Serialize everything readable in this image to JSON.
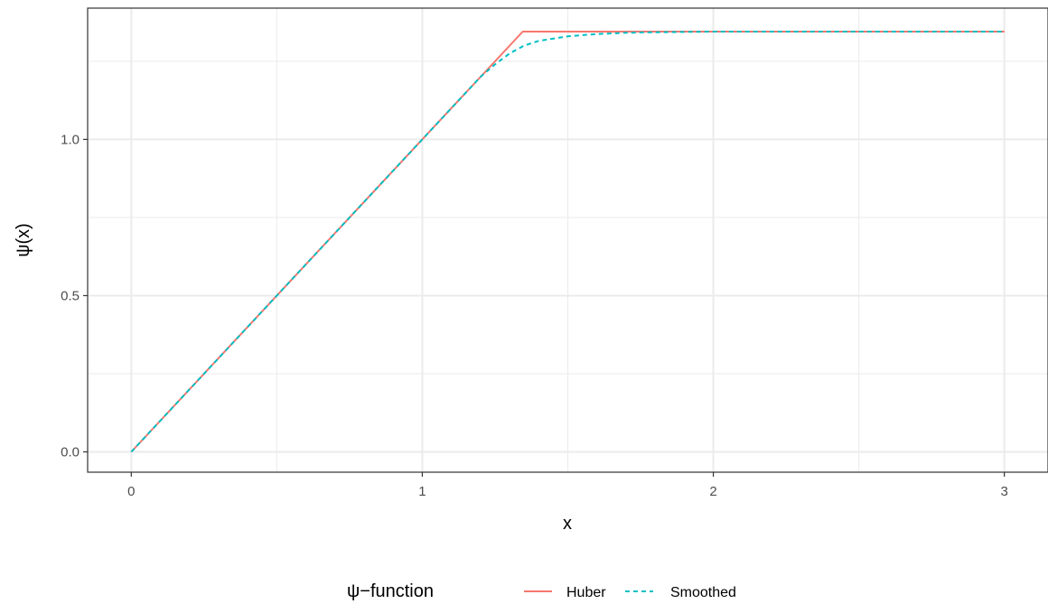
{
  "chart_data": {
    "type": "line",
    "title": "",
    "xlabel": "x",
    "ylabel": "ψ(x)",
    "xlim": [
      -0.15,
      3.15
    ],
    "ylim": [
      -0.065,
      1.42
    ],
    "x_ticks": [
      0,
      1,
      2,
      3
    ],
    "x_tick_labels": [
      "0",
      "1",
      "2",
      "3"
    ],
    "x_minor_ticks": [
      0.5,
      1.5,
      2.5
    ],
    "y_ticks": [
      0.0,
      0.5,
      1.0
    ],
    "y_tick_labels": [
      "0.0",
      "0.5",
      "1.0"
    ],
    "y_minor_ticks": [
      0.25,
      0.75,
      1.25
    ],
    "grid": true,
    "legend": {
      "title": "ψ−function",
      "position": "bottom",
      "entries": [
        "Huber",
        "Smoothed"
      ]
    },
    "series": [
      {
        "name": "Huber",
        "color": "#F8766D",
        "linestyle": "solid",
        "x": [
          0,
          0.5,
          1.0,
          1.345,
          1.5,
          2.0,
          2.5,
          3.0
        ],
        "y": [
          0,
          0.5,
          1.0,
          1.345,
          1.345,
          1.345,
          1.345,
          1.345
        ]
      },
      {
        "name": "Smoothed",
        "color": "#00BFC4",
        "linestyle": "dashed",
        "x": [
          0,
          0.5,
          1.0,
          1.2,
          1.25,
          1.3,
          1.35,
          1.4,
          1.5,
          1.6,
          1.7,
          1.8,
          2.0,
          2.5,
          3.0
        ],
        "y": [
          0,
          0.5,
          1.0,
          1.2,
          1.24,
          1.275,
          1.3,
          1.315,
          1.33,
          1.337,
          1.341,
          1.343,
          1.345,
          1.345,
          1.345
        ]
      }
    ]
  }
}
